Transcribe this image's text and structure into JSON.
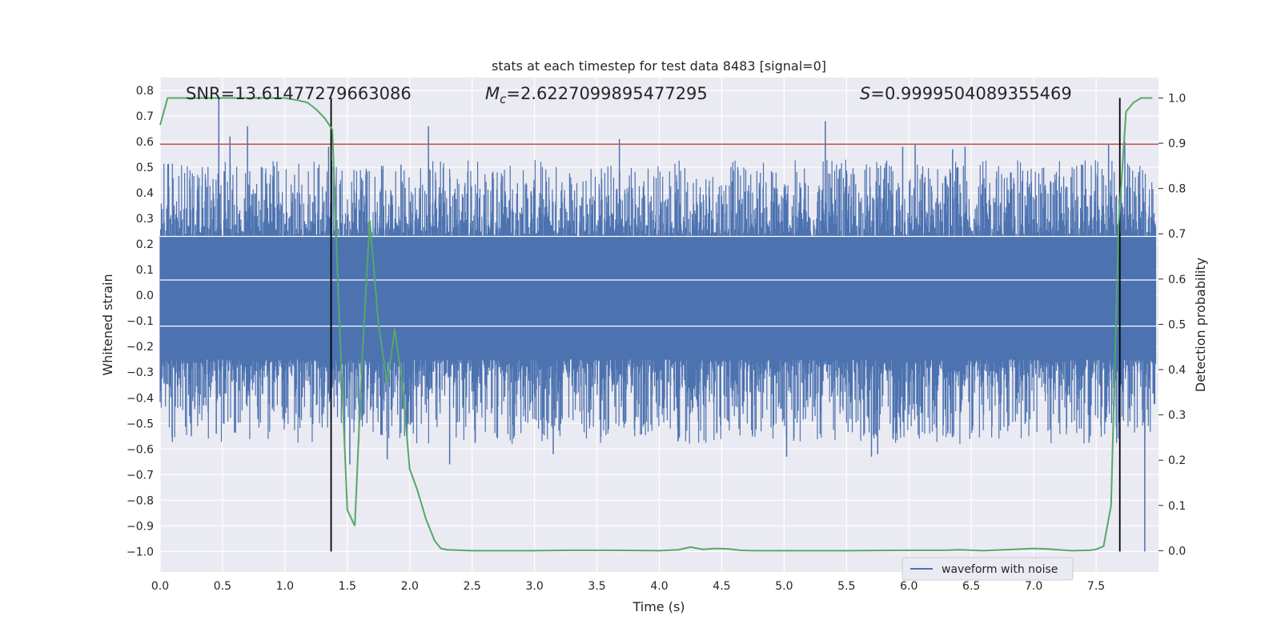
{
  "chart_data": {
    "type": "line",
    "title": "stats at each timestep for test data 8483 [signal=0]",
    "xlabel": "Time (s)",
    "ylabel_left": "Whitened strain",
    "ylabel_right": "Detection probability",
    "xlim": [
      0.0,
      8.0
    ],
    "ylim_left": [
      -1.08,
      0.85
    ],
    "ylim_right": [
      -0.047,
      1.045
    ],
    "x_ticks": [
      "0.0",
      "0.5",
      "1.0",
      "1.5",
      "2.0",
      "2.5",
      "3.0",
      "3.5",
      "4.0",
      "4.5",
      "5.0",
      "5.5",
      "6.0",
      "6.5",
      "7.0",
      "7.5"
    ],
    "y_ticks_left": [
      "0.8",
      "0.7",
      "0.6",
      "0.5",
      "0.4",
      "0.3",
      "0.2",
      "0.1",
      "0.0",
      "−0.1",
      "−0.2",
      "−0.3",
      "−0.4",
      "−0.5",
      "−0.6",
      "−0.7",
      "−0.8",
      "−0.9",
      "−1.0"
    ],
    "y_ticks_right": [
      "1.0",
      "0.9",
      "0.8",
      "0.7",
      "0.6",
      "0.5",
      "0.4",
      "0.3",
      "0.2",
      "0.1",
      "0.0"
    ],
    "grid": true,
    "legend": {
      "position": "bottom-right",
      "entries": [
        "waveform with noise"
      ]
    },
    "annotations": {
      "snr_label": "SNR=13.61477279663086",
      "mc_symbol": "M",
      "mc_subscript": "c",
      "mc_value": "=2.6227099895477295",
      "s_symbol": "S",
      "s_value": "=0.9999504089355469"
    },
    "threshold_line_left_value": 0.59,
    "vertical_markers_x": [
      1.37,
      7.69
    ],
    "colors": {
      "waveform": "#4c72b0",
      "probability": "#55a868",
      "threshold": "#c44e52",
      "markers": "#000000",
      "plot_bg": "#eaeaf2",
      "grid": "#ffffff"
    },
    "waveform": {
      "name": "waveform with noise",
      "core_amplitude": 0.23,
      "peaks": [
        [
          0.47,
          0.77
        ],
        [
          0.56,
          0.62
        ],
        [
          0.7,
          0.66
        ],
        [
          1.35,
          0.58
        ],
        [
          1.93,
          0.51
        ],
        [
          2.15,
          0.66
        ],
        [
          3.68,
          0.61
        ],
        [
          5.33,
          0.68
        ],
        [
          5.95,
          0.58
        ],
        [
          6.05,
          0.59
        ],
        [
          6.35,
          0.57
        ],
        [
          6.45,
          0.58
        ],
        [
          7.6,
          0.59
        ],
        [
          7.73,
          0.6
        ]
      ],
      "troughs": [
        [
          0.25,
          -0.55
        ],
        [
          0.45,
          -0.54
        ],
        [
          1.52,
          -0.66
        ],
        [
          1.82,
          -0.64
        ],
        [
          2.32,
          -0.66
        ],
        [
          3.15,
          -0.62
        ],
        [
          4.15,
          -0.57
        ],
        [
          5.02,
          -0.63
        ],
        [
          5.7,
          -0.63
        ],
        [
          5.75,
          -0.62
        ],
        [
          7.89,
          -1.0
        ]
      ]
    },
    "series": [
      {
        "name": "Detection probability",
        "x": [
          0.0,
          0.06,
          0.2,
          0.4,
          0.6,
          0.8,
          1.0,
          1.1,
          1.18,
          1.25,
          1.32,
          1.38,
          1.43,
          1.5,
          1.56,
          1.62,
          1.68,
          1.75,
          1.82,
          1.88,
          1.94,
          2.0,
          2.06,
          2.13,
          2.2,
          2.25,
          2.3,
          2.5,
          3.0,
          3.3,
          3.6,
          4.0,
          4.15,
          4.25,
          4.35,
          4.45,
          4.55,
          4.65,
          4.75,
          5.0,
          5.5,
          6.0,
          6.3,
          6.4,
          6.6,
          7.0,
          7.1,
          7.3,
          7.45,
          7.5,
          7.56,
          7.62,
          7.68,
          7.74,
          7.8,
          7.86,
          7.95
        ],
        "values": [
          0.94,
          1.0,
          1.0,
          1.0,
          1.0,
          1.0,
          1.0,
          0.995,
          0.99,
          0.975,
          0.955,
          0.93,
          0.55,
          0.09,
          0.055,
          0.43,
          0.73,
          0.5,
          0.37,
          0.49,
          0.37,
          0.18,
          0.135,
          0.07,
          0.022,
          0.005,
          0.002,
          0.0,
          0.0,
          0.001,
          0.001,
          0.0,
          0.002,
          0.008,
          0.003,
          0.005,
          0.004,
          0.001,
          0.0,
          0.0,
          0.0,
          0.001,
          0.001,
          0.002,
          0.0,
          0.005,
          0.004,
          0.0,
          0.001,
          0.003,
          0.01,
          0.1,
          0.72,
          0.97,
          0.99,
          1.0,
          1.0
        ]
      }
    ]
  }
}
